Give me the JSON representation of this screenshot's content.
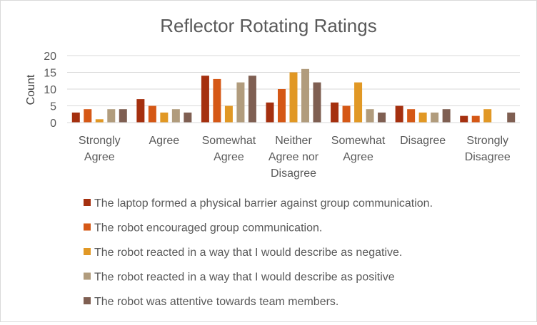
{
  "chart_data": {
    "type": "bar",
    "title": "Reflector Rotating Ratings",
    "xlabel": "",
    "ylabel": "Count",
    "ylim": [
      0,
      20
    ],
    "yticks": [
      0,
      5,
      10,
      15,
      20
    ],
    "grid": true,
    "legend_position": "bottom",
    "categories": [
      [
        "Strongly",
        "Agree"
      ],
      [
        "Agree"
      ],
      [
        "Somewhat",
        "Agree"
      ],
      [
        "Neither",
        "Agree nor",
        "Disagree"
      ],
      [
        "Somewhat",
        "Agree"
      ],
      [
        "Disagree"
      ],
      [
        "Strongly",
        "Disagree"
      ]
    ],
    "series": [
      {
        "name": "The laptop formed a physical barrier against group communication.",
        "color": "#a5300f",
        "values": [
          3,
          7,
          14,
          6,
          6,
          5,
          2
        ]
      },
      {
        "name": "The robot encouraged group communication.",
        "color": "#d55816",
        "values": [
          4,
          5,
          13,
          10,
          5,
          4,
          2
        ]
      },
      {
        "name": "The robot reacted in a way that I would describe as negative.",
        "color": "#e19825",
        "values": [
          1,
          3,
          5,
          15,
          12,
          3,
          4
        ]
      },
      {
        "name": "The robot reacted in a way that I would describe as positive",
        "color": "#b19c7d",
        "values": [
          4,
          4,
          12,
          16,
          4,
          3,
          0
        ]
      },
      {
        "name": "The robot was attentive towards team members.",
        "color": "#7f5f52",
        "values": [
          4,
          3,
          14,
          12,
          3,
          4,
          3
        ]
      }
    ]
  }
}
